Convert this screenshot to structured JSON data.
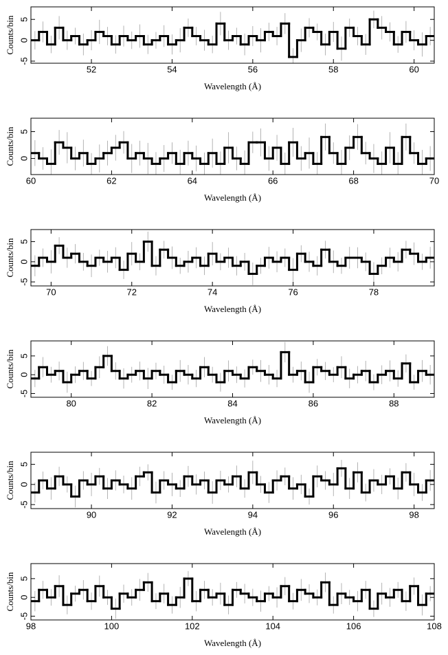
{
  "chart_data": [
    {
      "type": "step",
      "xlabel": "Wavelength (Å)",
      "ylabel": "Counts/bin",
      "color": "#000000",
      "error_color": "#a0a0a0",
      "xlim": [
        50.5,
        60.5
      ],
      "xticks": [
        52,
        54,
        56,
        58,
        60
      ],
      "ylim": [
        -5.5,
        8
      ],
      "yticks": [
        -5,
        0,
        5
      ],
      "x": [
        50.6,
        50.8,
        51.0,
        51.2,
        51.4,
        51.6,
        51.8,
        52.0,
        52.2,
        52.4,
        52.6,
        52.8,
        53.0,
        53.2,
        53.4,
        53.6,
        53.8,
        54.0,
        54.2,
        54.4,
        54.6,
        54.8,
        55.0,
        55.2,
        55.4,
        55.6,
        55.8,
        56.0,
        56.2,
        56.4,
        56.6,
        56.8,
        57.0,
        57.2,
        57.4,
        57.6,
        57.8,
        58.0,
        58.2,
        58.4,
        58.6,
        58.8,
        59.0,
        59.2,
        59.4,
        59.6,
        59.8,
        60.0,
        60.2,
        60.4
      ],
      "values": [
        0,
        2,
        -1,
        3,
        0,
        1,
        -1,
        0,
        2,
        1,
        -1,
        1,
        0,
        1,
        -1,
        0,
        1,
        -1,
        0,
        3,
        1,
        0,
        -1,
        4,
        0,
        1,
        -1,
        1,
        0,
        2,
        1,
        4,
        -4,
        0,
        3,
        2,
        -1,
        2,
        -2,
        3,
        1,
        -1,
        5,
        3,
        2,
        -1,
        2,
        0,
        -1,
        1
      ],
      "errors": [
        2.2,
        2.5,
        2.1,
        2.8,
        2.3,
        2.0,
        2.6,
        2.4,
        2.9,
        2.2,
        2.2,
        2.5,
        2.1,
        2.8,
        2.3,
        2.0,
        2.6,
        2.4,
        2.9,
        2.2,
        2.2,
        2.5,
        2.1,
        2.8,
        2.3,
        2.0,
        2.6,
        2.4,
        2.9,
        2.2,
        2.2,
        2.5,
        2.1,
        2.8,
        2.3,
        2.0,
        2.6,
        2.4,
        2.9,
        2.2,
        2.2,
        2.5,
        2.1,
        2.8,
        2.3,
        2.0,
        2.6,
        2.4,
        2.9,
        2.2
      ]
    },
    {
      "type": "step",
      "xlabel": "Wavelength (Å)",
      "ylabel": "Counts/bin",
      "color": "#000000",
      "error_color": "#a0a0a0",
      "xlim": [
        60,
        70
      ],
      "xticks": [
        60,
        62,
        64,
        66,
        68,
        70
      ],
      "ylim": [
        -3,
        7.5
      ],
      "yticks": [
        0,
        5
      ],
      "x": [
        60.1,
        60.3,
        60.5,
        60.7,
        60.9,
        61.1,
        61.3,
        61.5,
        61.7,
        61.9,
        62.1,
        62.3,
        62.5,
        62.7,
        62.9,
        63.1,
        63.3,
        63.5,
        63.7,
        63.9,
        64.1,
        64.3,
        64.5,
        64.7,
        64.9,
        65.1,
        65.3,
        65.5,
        65.7,
        65.9,
        66.1,
        66.3,
        66.5,
        66.7,
        66.9,
        67.1,
        67.3,
        67.5,
        67.7,
        67.9,
        68.1,
        68.3,
        68.5,
        68.7,
        68.9,
        69.1,
        69.3,
        69.5,
        69.7,
        69.9
      ],
      "values": [
        1,
        0,
        -1,
        3,
        2,
        0,
        1,
        -1,
        0,
        1,
        2,
        3,
        0,
        1,
        0,
        -1,
        0,
        1,
        -1,
        1,
        0,
        -1,
        1,
        -1,
        2,
        0,
        -1,
        3,
        3,
        0,
        2,
        -1,
        3,
        0,
        1,
        -1,
        4,
        1,
        -1,
        2,
        4,
        1,
        0,
        -1,
        2,
        -1,
        4,
        1,
        -1,
        0
      ],
      "errors": [
        2.4,
        2.1,
        2.7,
        2.3,
        2.9,
        2.2,
        2.5,
        2.0,
        2.6,
        2.3,
        2.4,
        2.1,
        2.7,
        2.3,
        2.9,
        2.2,
        2.5,
        2.0,
        2.6,
        2.3,
        2.4,
        2.1,
        2.7,
        2.3,
        2.9,
        2.2,
        2.5,
        2.0,
        2.6,
        2.3,
        2.4,
        2.1,
        2.7,
        2.3,
        2.9,
        2.2,
        2.5,
        2.0,
        2.6,
        2.3,
        2.4,
        2.1,
        2.7,
        2.3,
        2.9,
        2.2,
        2.5,
        2.0,
        2.6,
        2.3
      ]
    },
    {
      "type": "step",
      "xlabel": "Wavelength (Å)",
      "ylabel": "Counts/bin",
      "color": "#000000",
      "error_color": "#a0a0a0",
      "xlim": [
        69.5,
        79.5
      ],
      "xticks": [
        70,
        72,
        74,
        76,
        78
      ],
      "ylim": [
        -6,
        8
      ],
      "yticks": [
        -5,
        0,
        5
      ],
      "x": [
        69.6,
        69.8,
        70.0,
        70.2,
        70.4,
        70.6,
        70.8,
        71.0,
        71.2,
        71.4,
        71.6,
        71.8,
        72.0,
        72.2,
        72.4,
        72.6,
        72.8,
        73.0,
        73.2,
        73.4,
        73.6,
        73.8,
        74.0,
        74.2,
        74.4,
        74.6,
        74.8,
        75.0,
        75.2,
        75.4,
        75.6,
        75.8,
        76.0,
        76.2,
        76.4,
        76.6,
        76.8,
        77.0,
        77.2,
        77.4,
        77.6,
        77.8,
        78.0,
        78.2,
        78.4,
        78.6,
        78.8,
        79.0,
        79.2,
        79.4
      ],
      "values": [
        -1,
        1,
        0,
        4,
        1,
        2,
        0,
        -1,
        1,
        0,
        1,
        -2,
        2,
        0,
        5,
        -1,
        3,
        1,
        -1,
        0,
        1,
        -1,
        2,
        0,
        1,
        -1,
        0,
        -3,
        -1,
        1,
        0,
        1,
        -2,
        2,
        0,
        -1,
        3,
        0,
        -1,
        1,
        1,
        0,
        -3,
        -1,
        1,
        0,
        3,
        2,
        0,
        1
      ],
      "errors": [
        2.6,
        2.3,
        2.9,
        2.1,
        2.5,
        2.4,
        2.2,
        2.8,
        2.0,
        2.7,
        2.6,
        2.3,
        2.9,
        2.1,
        2.5,
        2.4,
        2.2,
        2.8,
        2.0,
        2.7,
        2.6,
        2.3,
        2.9,
        2.1,
        2.5,
        2.4,
        2.2,
        2.8,
        2.0,
        2.7,
        2.6,
        2.3,
        2.9,
        2.1,
        2.5,
        2.4,
        2.2,
        2.8,
        2.0,
        2.7,
        2.6,
        2.3,
        2.9,
        2.1,
        2.5,
        2.4,
        2.2,
        2.8,
        2.0,
        2.7
      ]
    },
    {
      "type": "step",
      "xlabel": "Wavelength (Å)",
      "ylabel": "Counts/bin",
      "color": "#000000",
      "error_color": "#a0a0a0",
      "xlim": [
        79,
        89
      ],
      "xticks": [
        80,
        82,
        84,
        86,
        88
      ],
      "ylim": [
        -6,
        9
      ],
      "yticks": [
        -5,
        0,
        5
      ],
      "x": [
        79.1,
        79.3,
        79.5,
        79.7,
        79.9,
        80.1,
        80.3,
        80.5,
        80.7,
        80.9,
        81.1,
        81.3,
        81.5,
        81.7,
        81.9,
        82.1,
        82.3,
        82.5,
        82.7,
        82.9,
        83.1,
        83.3,
        83.5,
        83.7,
        83.9,
        84.1,
        84.3,
        84.5,
        84.7,
        84.9,
        85.1,
        85.3,
        85.5,
        85.7,
        85.9,
        86.1,
        86.3,
        86.5,
        86.7,
        86.9,
        87.1,
        87.3,
        87.5,
        87.7,
        87.9,
        88.1,
        88.3,
        88.5,
        88.7,
        88.9
      ],
      "values": [
        -1,
        2,
        0,
        1,
        -2,
        0,
        1,
        -1,
        2,
        5,
        1,
        -1,
        0,
        1,
        -1,
        1,
        0,
        -2,
        1,
        0,
        -1,
        2,
        0,
        -2,
        1,
        0,
        -1,
        2,
        1,
        0,
        -1,
        6,
        0,
        1,
        -2,
        2,
        1,
        0,
        2,
        -1,
        0,
        1,
        -2,
        0,
        1,
        -1,
        3,
        -2,
        1,
        0
      ],
      "errors": [
        2.3,
        2.7,
        2.1,
        2.5,
        2.8,
        2.2,
        2.4,
        2.0,
        2.9,
        2.6,
        2.3,
        2.7,
        2.1,
        2.5,
        2.8,
        2.2,
        2.4,
        2.0,
        2.9,
        2.6,
        2.3,
        2.7,
        2.1,
        2.5,
        2.8,
        2.2,
        2.4,
        2.0,
        2.9,
        2.6,
        2.3,
        2.7,
        2.1,
        2.5,
        2.8,
        2.2,
        2.4,
        2.0,
        2.9,
        2.6,
        2.3,
        2.7,
        2.1,
        2.5,
        2.8,
        2.2,
        2.4,
        2.0,
        2.9,
        2.6
      ]
    },
    {
      "type": "step",
      "xlabel": "Wavelength (Å)",
      "ylabel": "Counts/bin",
      "color": "#000000",
      "error_color": "#a0a0a0",
      "xlim": [
        88.5,
        98.5
      ],
      "xticks": [
        90,
        92,
        94,
        96,
        98
      ],
      "ylim": [
        -6,
        8
      ],
      "yticks": [
        -5,
        0,
        5
      ],
      "x": [
        88.6,
        88.8,
        89.0,
        89.2,
        89.4,
        89.6,
        89.8,
        90.0,
        90.2,
        90.4,
        90.6,
        90.8,
        91.0,
        91.2,
        91.4,
        91.6,
        91.8,
        92.0,
        92.2,
        92.4,
        92.6,
        92.8,
        93.0,
        93.2,
        93.4,
        93.6,
        93.8,
        94.0,
        94.2,
        94.4,
        94.6,
        94.8,
        95.0,
        95.2,
        95.4,
        95.6,
        95.8,
        96.0,
        96.2,
        96.4,
        96.6,
        96.8,
        97.0,
        97.2,
        97.4,
        97.6,
        97.8,
        98.0,
        98.2,
        98.4
      ],
      "values": [
        -2,
        1,
        -1,
        2,
        0,
        -3,
        1,
        0,
        2,
        -1,
        1,
        0,
        -1,
        2,
        3,
        -2,
        1,
        0,
        -1,
        2,
        0,
        1,
        -2,
        1,
        0,
        2,
        -1,
        3,
        0,
        -2,
        1,
        2,
        -1,
        0,
        -3,
        2,
        1,
        0,
        4,
        -1,
        3,
        -2,
        1,
        0,
        2,
        -1,
        3,
        0,
        -2,
        1
      ],
      "errors": [
        2.5,
        2.2,
        2.8,
        2.4,
        2.0,
        2.7,
        2.3,
        2.9,
        2.1,
        2.6,
        2.5,
        2.2,
        2.8,
        2.4,
        2.0,
        2.7,
        2.3,
        2.9,
        2.1,
        2.6,
        2.5,
        2.2,
        2.8,
        2.4,
        2.0,
        2.7,
        2.3,
        2.9,
        2.1,
        2.6,
        2.5,
        2.2,
        2.8,
        2.4,
        2.0,
        2.7,
        2.3,
        2.9,
        2.1,
        2.6,
        2.5,
        2.2,
        2.8,
        2.4,
        2.0,
        2.7,
        2.3,
        2.9,
        2.1,
        2.6
      ]
    },
    {
      "type": "step",
      "xlabel": "Wavelength (Å)",
      "ylabel": "Counts/bin",
      "color": "#000000",
      "error_color": "#a0a0a0",
      "xlim": [
        98,
        108
      ],
      "xticks": [
        98,
        100,
        102,
        104,
        106,
        108
      ],
      "ylim": [
        -6,
        9
      ],
      "yticks": [
        -5,
        0,
        5
      ],
      "x": [
        98.1,
        98.3,
        98.5,
        98.7,
        98.9,
        99.1,
        99.3,
        99.5,
        99.7,
        99.9,
        100.1,
        100.3,
        100.5,
        100.7,
        100.9,
        101.1,
        101.3,
        101.5,
        101.7,
        101.9,
        102.1,
        102.3,
        102.5,
        102.7,
        102.9,
        103.1,
        103.3,
        103.5,
        103.7,
        103.9,
        104.1,
        104.3,
        104.5,
        104.7,
        104.9,
        105.1,
        105.3,
        105.5,
        105.7,
        105.9,
        106.1,
        106.3,
        106.5,
        106.7,
        106.9,
        107.1,
        107.3,
        107.5,
        107.7,
        107.9
      ],
      "values": [
        -1,
        2,
        0,
        3,
        -2,
        1,
        2,
        -1,
        3,
        0,
        -3,
        1,
        0,
        2,
        4,
        -1,
        1,
        -2,
        0,
        5,
        -1,
        2,
        0,
        1,
        -2,
        2,
        1,
        0,
        -1,
        1,
        0,
        3,
        -1,
        2,
        1,
        0,
        4,
        -2,
        1,
        0,
        -1,
        2,
        -3,
        1,
        0,
        2,
        -1,
        3,
        -2,
        1
      ],
      "errors": [
        2.7,
        2.4,
        2.2,
        2.9,
        2.5,
        2.1,
        2.6,
        2.3,
        2.8,
        2.0,
        2.7,
        2.4,
        2.2,
        2.9,
        2.5,
        2.1,
        2.6,
        2.3,
        2.8,
        2.0,
        2.7,
        2.4,
        2.2,
        2.9,
        2.5,
        2.1,
        2.6,
        2.3,
        2.8,
        2.0,
        2.7,
        2.4,
        2.2,
        2.9,
        2.5,
        2.1,
        2.6,
        2.3,
        2.8,
        2.0,
        2.7,
        2.4,
        2.2,
        2.9,
        2.5,
        2.1,
        2.6,
        2.3,
        2.8,
        2.0
      ]
    }
  ]
}
